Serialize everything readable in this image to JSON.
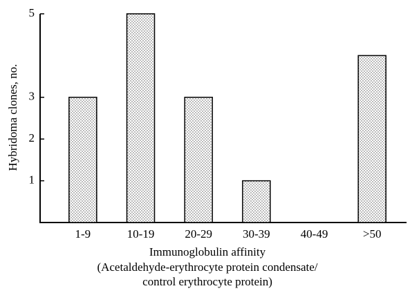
{
  "chart_data": {
    "type": "bar",
    "ylabel": "Hybridoma clones, no.",
    "xlabel": [
      "Immunoglobulin affinity",
      "(Acetaldehyde-erythrocyte protein condensate/",
      "control erythrocyte protein)"
    ],
    "categories": [
      "1-9",
      "10-19",
      "20-29",
      "30-39",
      "40-49",
      ">50"
    ],
    "values": [
      3,
      5,
      3,
      1,
      0,
      4
    ],
    "color": "#d8d8d8",
    "ylim": [
      0,
      5
    ],
    "yticks": [
      1,
      2,
      3,
      5
    ],
    "grid": false
  }
}
